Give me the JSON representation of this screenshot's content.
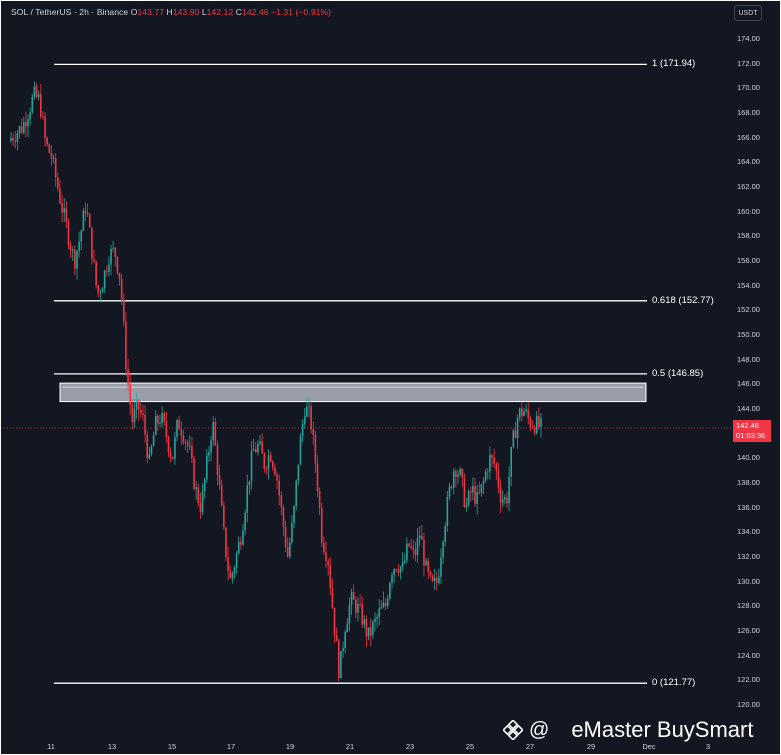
{
  "header": {
    "symbol": "SOL / TetherUS · 2h · Binance",
    "o_label": "O",
    "o_value": "143.77",
    "h_label": "H",
    "h_value": "143.90",
    "l_label": "L",
    "l_value": "142.12",
    "c_label": "C",
    "c_value": "142.46",
    "change": "−1.31 (−0.91%)"
  },
  "currency_button": "USDT",
  "price_tag": {
    "price": "142.46",
    "countdown": "01:03:36"
  },
  "watermark": {
    "at": "@",
    "text": "eMaster BuySmart"
  },
  "colors": {
    "background": "#131722",
    "up": "#26a69a",
    "down": "#f23645",
    "fib_line": "#ffffff",
    "zone": "#b2b5be",
    "axis_text": "#d1d4dc"
  },
  "chart_data": {
    "type": "candlestick",
    "title": "SOL / TetherUS · 2h · Binance",
    "ylim": [
      119.4,
      175.6
    ],
    "y_ticks": [
      "120.00",
      "122.00",
      "124.00",
      "126.00",
      "128.00",
      "130.00",
      "132.00",
      "134.00",
      "136.00",
      "138.00",
      "140.00",
      "142.00",
      "144.00",
      "146.00",
      "148.00",
      "150.00",
      "152.00",
      "154.00",
      "156.00",
      "158.00",
      "160.00",
      "162.00",
      "164.00",
      "166.00",
      "168.00",
      "170.00",
      "172.00",
      "174.00"
    ],
    "x_ticks": [
      "11",
      "13",
      "15",
      "17",
      "19",
      "21",
      "23",
      "25",
      "27",
      "29",
      "Dec",
      "3"
    ],
    "fib_levels": [
      {
        "label": "1 (171.94)",
        "price": 171.94
      },
      {
        "label": "0.618 (152.77)",
        "price": 152.77
      },
      {
        "label": "0.5 (146.85)",
        "price": 146.85
      },
      {
        "label": "0 (121.77)",
        "price": 121.77
      }
    ],
    "resistance_zone": [
      144.6,
      146.1
    ],
    "current_price": 142.46,
    "close_path": [
      [
        0,
        166.0
      ],
      [
        2,
        166.9
      ],
      [
        4,
        169.4
      ],
      [
        5,
        169.0
      ],
      [
        6,
        165.5
      ],
      [
        7,
        164.5
      ],
      [
        9,
        160.0
      ],
      [
        10,
        158.0
      ],
      [
        11,
        156.0
      ],
      [
        12,
        158.0
      ],
      [
        13,
        160.6
      ],
      [
        14,
        157.0
      ],
      [
        15,
        153.2
      ],
      [
        16,
        154.5
      ],
      [
        17,
        156.5
      ],
      [
        18,
        156.8
      ],
      [
        19,
        154.5
      ],
      [
        20,
        147.5
      ],
      [
        21,
        143.0
      ],
      [
        22,
        144.2
      ],
      [
        23,
        143.0
      ],
      [
        24,
        139.5
      ],
      [
        25,
        142.6
      ],
      [
        26,
        143.4
      ],
      [
        27,
        141.8
      ],
      [
        28,
        140.0
      ],
      [
        29,
        143.0
      ],
      [
        30,
        142.0
      ],
      [
        31,
        140.5
      ],
      [
        32,
        137.5
      ],
      [
        33,
        136.0
      ],
      [
        34,
        139.5
      ],
      [
        35,
        143.0
      ],
      [
        36,
        138.5
      ],
      [
        37,
        133.5
      ],
      [
        38,
        130.0
      ],
      [
        39,
        131.8
      ],
      [
        40,
        134.0
      ],
      [
        41,
        137.5
      ],
      [
        42,
        140.6
      ],
      [
        43,
        141.0
      ],
      [
        44,
        139.5
      ],
      [
        45,
        140.5
      ],
      [
        46,
        139.0
      ],
      [
        47,
        135.5
      ],
      [
        48,
        132.0
      ],
      [
        49,
        135.0
      ],
      [
        50,
        140.5
      ],
      [
        51,
        144.2
      ],
      [
        52,
        143.2
      ],
      [
        53,
        139.0
      ],
      [
        54,
        133.5
      ],
      [
        55,
        132.0
      ],
      [
        56,
        127.0
      ],
      [
        57,
        122.5
      ],
      [
        58,
        126.5
      ],
      [
        59,
        128.5
      ],
      [
        60,
        128.0
      ],
      [
        61,
        127.0
      ],
      [
        62,
        125.5
      ],
      [
        63,
        126.5
      ],
      [
        64,
        127.5
      ],
      [
        65,
        128.0
      ],
      [
        66,
        131.0
      ],
      [
        67,
        131.5
      ],
      [
        68,
        131.0
      ],
      [
        69,
        133.0
      ],
      [
        70,
        132.0
      ],
      [
        71,
        134.0
      ],
      [
        72,
        131.0
      ],
      [
        73,
        129.5
      ],
      [
        74,
        130.0
      ],
      [
        75,
        134.0
      ],
      [
        76,
        137.0
      ],
      [
        77,
        139.5
      ],
      [
        78,
        138.5
      ],
      [
        79,
        136.0
      ],
      [
        80,
        137.5
      ],
      [
        81,
        136.5
      ],
      [
        82,
        138.0
      ],
      [
        83,
        140.0
      ],
      [
        84,
        139.5
      ],
      [
        85,
        137.0
      ],
      [
        86,
        136.5
      ],
      [
        87,
        141.0
      ],
      [
        88,
        143.5
      ],
      [
        89,
        143.9
      ],
      [
        90,
        143.0
      ],
      [
        91,
        142.8
      ],
      [
        92,
        142.46
      ]
    ]
  }
}
